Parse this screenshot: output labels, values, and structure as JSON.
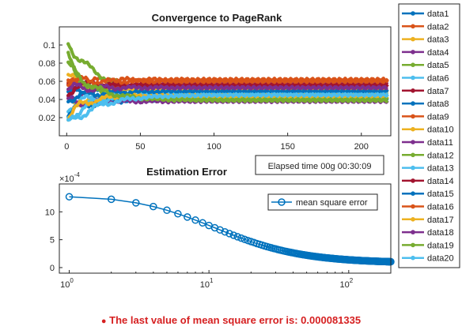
{
  "chart_data": [
    {
      "type": "line",
      "title": "Convergence to PageRank",
      "xlabel": "",
      "ylabel": "",
      "xlim": [
        -5,
        220
      ],
      "ylim": [
        0,
        0.12
      ],
      "xticks": [
        0,
        50,
        100,
        150,
        200
      ],
      "yticks": [
        0.02,
        0.04,
        0.06,
        0.08,
        0.1
      ],
      "grid": false,
      "legend_position": "outside-right",
      "x_max": 218,
      "series": [
        {
          "name": "data1",
          "color": "#0072BD",
          "start": 0.045,
          "final": 0.05
        },
        {
          "name": "data2",
          "color": "#D95319",
          "start": 0.055,
          "final": 0.062
        },
        {
          "name": "data3",
          "color": "#EDB120",
          "start": 0.035,
          "final": 0.042
        },
        {
          "name": "data4",
          "color": "#7E2F8E",
          "start": 0.04,
          "final": 0.058
        },
        {
          "name": "data5",
          "color": "#77AC30",
          "start": 0.105,
          "final": 0.047
        },
        {
          "name": "data6",
          "color": "#4DBEEE",
          "start": 0.03,
          "final": 0.043
        },
        {
          "name": "data7",
          "color": "#A2142F",
          "start": 0.05,
          "final": 0.055
        },
        {
          "name": "data8",
          "color": "#0072BD",
          "start": 0.025,
          "final": 0.04
        },
        {
          "name": "data9",
          "color": "#D95319",
          "start": 0.06,
          "final": 0.052
        },
        {
          "name": "data10",
          "color": "#EDB120",
          "start": 0.065,
          "final": 0.048
        },
        {
          "name": "data11",
          "color": "#7E2F8E",
          "start": 0.035,
          "final": 0.038
        },
        {
          "name": "data12",
          "color": "#77AC30",
          "start": 0.09,
          "final": 0.041
        },
        {
          "name": "data13",
          "color": "#4DBEEE",
          "start": 0.015,
          "final": 0.046
        },
        {
          "name": "data14",
          "color": "#A2142F",
          "start": 0.058,
          "final": 0.056
        },
        {
          "name": "data15",
          "color": "#0072BD",
          "start": 0.042,
          "final": 0.049
        },
        {
          "name": "data16",
          "color": "#D95319",
          "start": 0.062,
          "final": 0.06
        },
        {
          "name": "data17",
          "color": "#EDB120",
          "start": 0.02,
          "final": 0.044
        },
        {
          "name": "data18",
          "color": "#7E2F8E",
          "start": 0.052,
          "final": 0.053
        },
        {
          "name": "data19",
          "color": "#77AC30",
          "start": 0.08,
          "final": 0.039
        },
        {
          "name": "data20",
          "color": "#4DBEEE",
          "start": 0.01,
          "final": 0.045
        }
      ]
    },
    {
      "type": "line",
      "title": "Estimation Error",
      "xlabel": "",
      "ylabel": "",
      "xscale": "log",
      "xlim": [
        0.85,
        200
      ],
      "ylim": [
        -0.0001,
        0.0015
      ],
      "xticks": [
        1,
        10,
        100
      ],
      "xtick_labels": [
        "10",
        "10",
        "10"
      ],
      "xtick_exponents": [
        "0",
        "1",
        "2"
      ],
      "yticks": [
        0,
        5,
        10
      ],
      "y_exponent_label": "×10",
      "y_exponent": "-4",
      "grid": false,
      "legend_position": "top-right",
      "series": [
        {
          "name": "mean square error",
          "color": "#0072BD",
          "marker": "circle",
          "x_max": 200,
          "start": 0.00127,
          "final": 8.1335e-05
        }
      ]
    }
  ],
  "elapsed_label": "Elapsed time 00g 00:30:09",
  "status_message": "The last value of mean square error is: 0.000081335",
  "status_color": "#d62021"
}
